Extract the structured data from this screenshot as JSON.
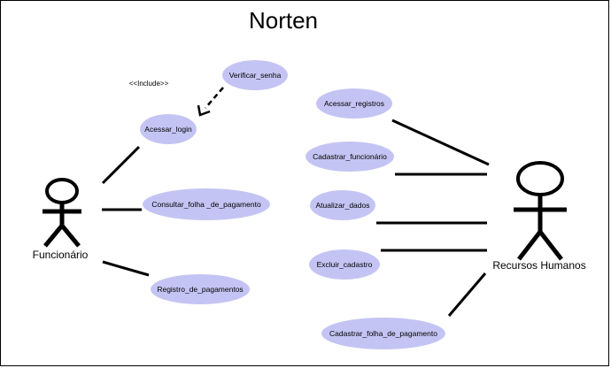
{
  "diagram": {
    "title": "Norten",
    "stereotype": "<<Include>>",
    "actors": [
      {
        "id": "funcionario",
        "label": "Funcionário"
      },
      {
        "id": "rh",
        "label": "Recursos Humanos"
      }
    ],
    "use_cases": [
      {
        "id": "verificar_senha",
        "label": "Verificar_senha"
      },
      {
        "id": "acessar_login",
        "label": "Acessar_login"
      },
      {
        "id": "consultar_folha",
        "label": "Consultar_folha _de_pagamento"
      },
      {
        "id": "registro_pagamentos",
        "label": "Registro_de_pagamentos"
      },
      {
        "id": "acessar_registros",
        "label": "Acessar_registros"
      },
      {
        "id": "cadastrar_funcionario",
        "label": "Cadastrar_funcionário"
      },
      {
        "id": "atualizar_dados",
        "label": "Atualizar_dados"
      },
      {
        "id": "excluir_cadastro",
        "label": "Excluir_cadastro"
      },
      {
        "id": "cadastrar_folha",
        "label": "Cadastrar_folha_de_pagamento"
      }
    ],
    "associations": [
      {
        "from": "funcionario",
        "to": "acessar_login"
      },
      {
        "from": "funcionario",
        "to": "consultar_folha"
      },
      {
        "from": "funcionario",
        "to": "registro_pagamentos"
      },
      {
        "from": "rh",
        "to": "acessar_registros"
      },
      {
        "from": "rh",
        "to": "cadastrar_funcionario"
      },
      {
        "from": "rh",
        "to": "atualizar_dados"
      },
      {
        "from": "rh",
        "to": "excluir_cadastro"
      },
      {
        "from": "rh",
        "to": "cadastrar_folha"
      }
    ],
    "dependencies": [
      {
        "from": "verificar_senha",
        "to": "acessar_login",
        "label": "<<Include>>"
      }
    ]
  }
}
